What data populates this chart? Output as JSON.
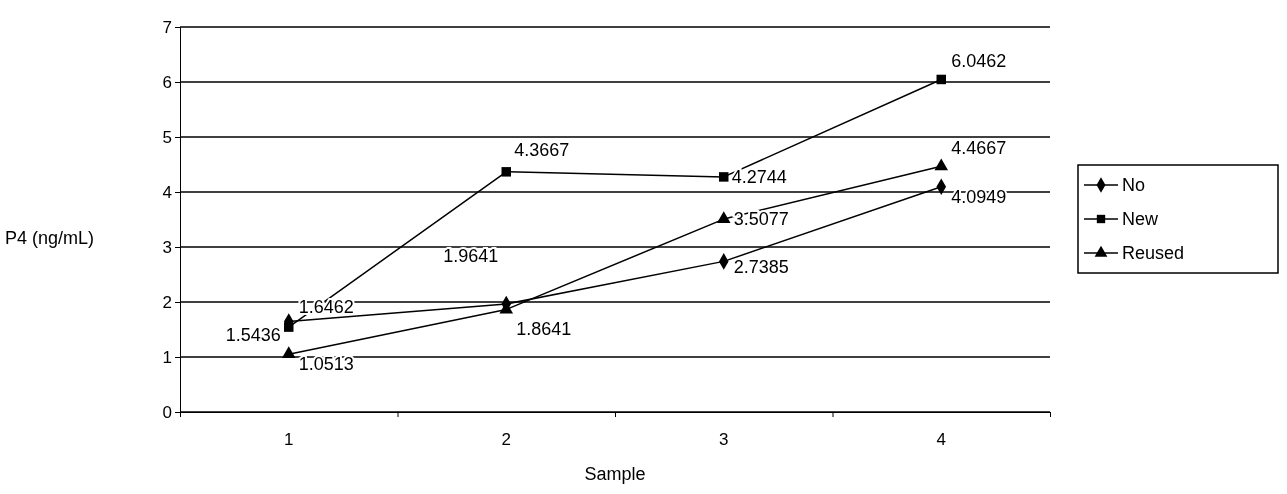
{
  "chart_data": {
    "type": "line",
    "xlabel": "Sample",
    "ylabel": "P4 (ng/mL)",
    "categories": [
      "1",
      "2",
      "3",
      "4"
    ],
    "series": [
      {
        "name": "No",
        "color": "#000000",
        "marker": "diamond",
        "values": [
          1.6462,
          1.9641,
          2.7385,
          4.0949
        ]
      },
      {
        "name": "New",
        "color": "#000000",
        "marker": "square",
        "values": [
          1.5436,
          4.3667,
          4.2744,
          6.0462
        ]
      },
      {
        "name": "Reused",
        "color": "#000000",
        "marker": "triangle",
        "values": [
          1.0513,
          1.8641,
          3.5077,
          4.4667
        ]
      }
    ],
    "ylim": [
      0,
      7
    ],
    "yticks": [
      0,
      1,
      2,
      3,
      4,
      5,
      6,
      7
    ],
    "grid": "y",
    "legend": "right",
    "data_labels": true
  }
}
